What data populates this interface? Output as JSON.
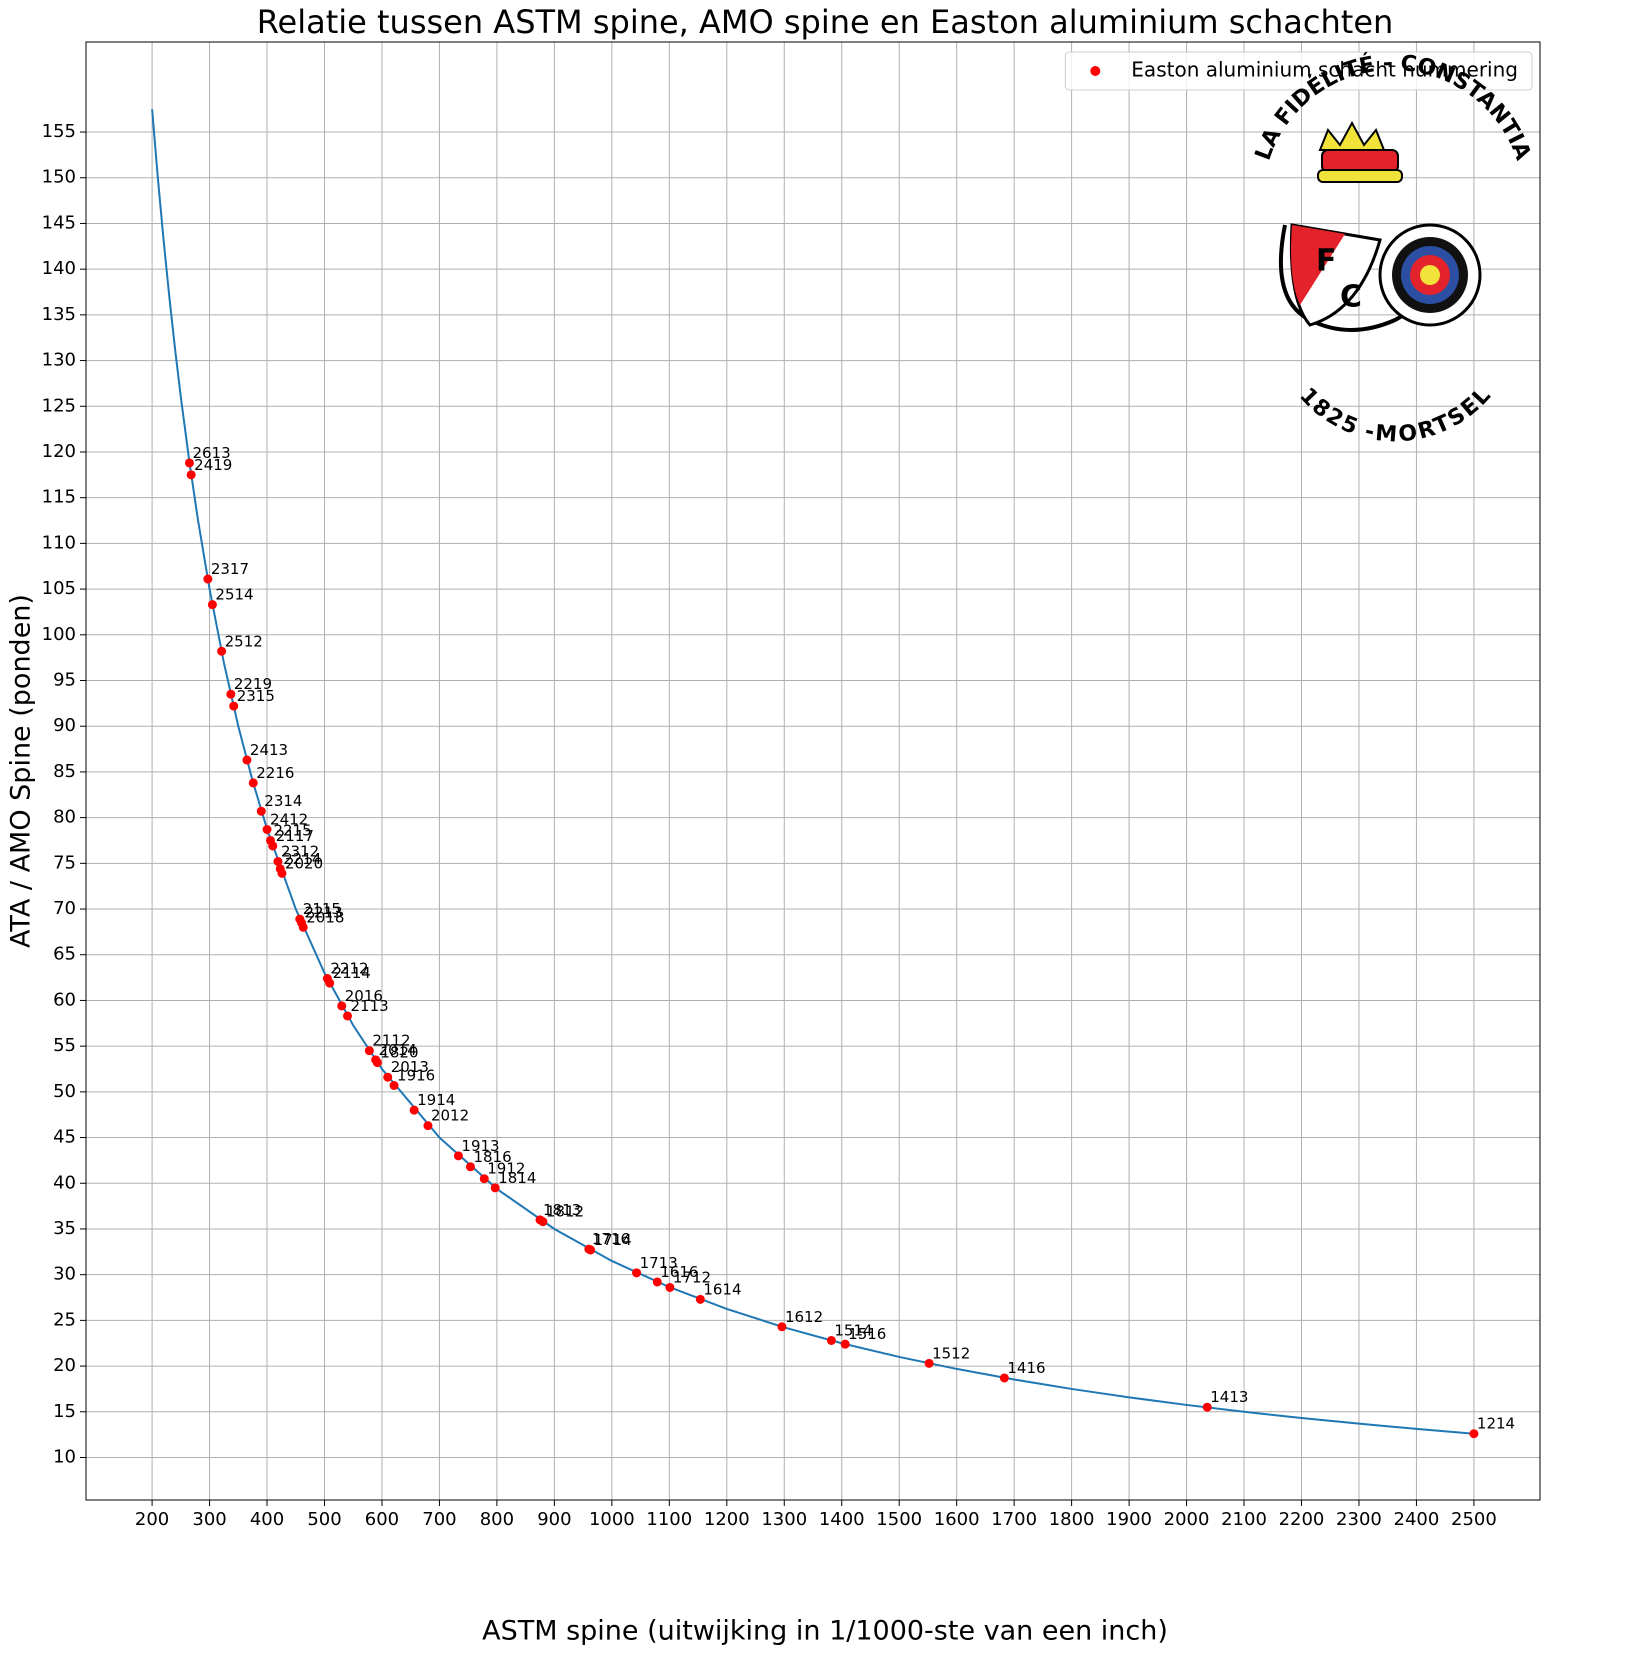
{
  "chart_data": {
    "type": "scatter",
    "title": "Relatie tussen ASTM spine, AMO spine en Easton aluminium schachten",
    "x_label": "ASTM spine (uitwijking in 1/1000-ste van een inch)",
    "y_label": "ATA / AMO Spine (ponden)",
    "xlim": [
      85,
      2615
    ],
    "ylim": [
      5.35,
      164.85
    ],
    "xticks": [
      200,
      300,
      400,
      500,
      600,
      700,
      800,
      900,
      1000,
      1100,
      1200,
      1300,
      1400,
      1500,
      1600,
      1700,
      1800,
      1900,
      2000,
      2100,
      2200,
      2300,
      2400,
      2500
    ],
    "yticks": [
      10,
      15,
      20,
      25,
      30,
      35,
      40,
      45,
      50,
      55,
      60,
      65,
      70,
      75,
      80,
      85,
      90,
      95,
      100,
      105,
      110,
      115,
      120,
      125,
      130,
      135,
      140,
      145,
      150,
      155
    ],
    "grid": true,
    "legend": "upper right",
    "annotations": [
      "LA FIDÉLITÉ - CONSTANTIA",
      "1825 -MORTSEL",
      "F",
      "C"
    ],
    "series": [
      {
        "type": "line",
        "color": "#1f77b4",
        "x": [
          200,
          210,
          220,
          230,
          240,
          250,
          265,
          280,
          300,
          325,
          350,
          375,
          400,
          450,
          500,
          550,
          600,
          700,
          800,
          900,
          1000,
          1100,
          1200,
          1300,
          1400,
          1500,
          1600,
          1700,
          1800,
          1900,
          2000,
          2100,
          2200,
          2300,
          2400,
          2500
        ],
        "values": [
          157.5,
          150,
          143.18,
          136.96,
          131.25,
          126,
          118.87,
          112.5,
          105,
          96.92,
          90,
          84,
          78.75,
          70,
          63,
          57.27,
          52.5,
          45,
          39.38,
          35,
          31.5,
          28.64,
          26.25,
          24.23,
          22.5,
          21,
          19.69,
          18.53,
          17.5,
          16.58,
          15.75,
          15,
          14.32,
          13.7,
          13.13,
          12.6
        ]
      },
      {
        "type": "scatter",
        "name": "Easton aluminium schacht nummering",
        "color": "#ff0000",
        "labels": [
          "2613",
          "2419",
          "2317",
          "2514",
          "2512",
          "2219",
          "2315",
          "2413",
          "2216",
          "2314",
          "2412",
          "2215",
          "2117",
          "2312",
          "2214",
          "2020",
          "2115",
          "2213",
          "2018",
          "2212",
          "2114",
          "2016",
          "2113",
          "2112",
          "2014",
          "1820",
          "2013",
          "1916",
          "1914",
          "2012",
          "1913",
          "1816",
          "1912",
          "1814",
          "1813",
          "1812",
          "1716",
          "1714",
          "1713",
          "1616",
          "1712",
          "1614",
          "1612",
          "1514",
          "1516",
          "1512",
          "1416",
          "1413",
          "1214"
        ],
        "x": [
          265,
          268,
          297,
          305,
          321,
          337,
          342,
          365,
          376,
          390,
          400,
          406,
          410,
          419,
          423,
          426,
          457,
          460,
          463,
          505,
          509,
          530,
          540,
          578,
          589,
          592,
          610,
          621,
          656,
          680,
          733,
          754,
          778,
          797,
          875,
          880,
          960,
          963,
          1043,
          1079,
          1101,
          1154,
          1296,
          1382,
          1406,
          1552,
          1683,
          2036,
          2500
        ],
        "values": [
          118.8,
          117.5,
          106.1,
          103.3,
          98.2,
          93.5,
          92.2,
          86.3,
          83.8,
          80.7,
          78.7,
          77.5,
          76.9,
          75.2,
          74.4,
          73.9,
          68.9,
          68.5,
          68.0,
          62.4,
          61.9,
          59.4,
          58.3,
          54.5,
          53.5,
          53.2,
          51.6,
          50.7,
          48.0,
          46.3,
          43.0,
          41.8,
          40.5,
          39.5,
          36.0,
          35.8,
          32.8,
          32.7,
          30.2,
          29.2,
          28.6,
          27.3,
          24.3,
          22.8,
          22.4,
          20.3,
          18.7,
          15.5,
          12.6
        ]
      }
    ]
  }
}
